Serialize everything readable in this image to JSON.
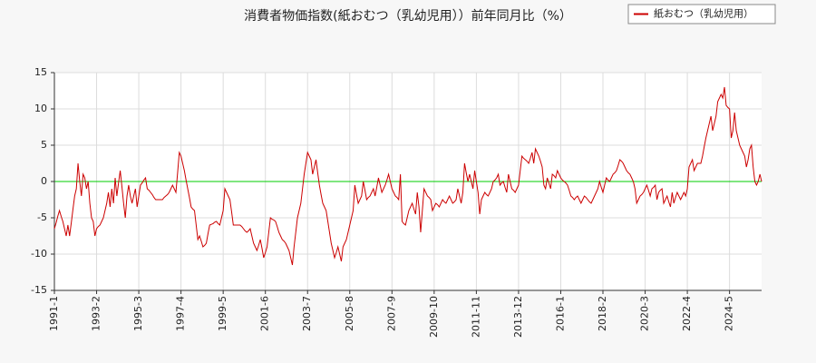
{
  "chart_data": {
    "type": "line",
    "title": "消費者物価指数(紙おむつ（乳幼児用））前年同月比（%）",
    "categories": [
      "1991-1",
      null,
      null,
      null,
      null,
      null,
      null,
      null,
      null,
      null,
      null,
      null,
      null,
      null,
      null,
      null,
      null,
      null,
      null,
      null,
      null,
      null,
      null,
      null,
      null,
      "1993-2",
      null,
      null,
      null,
      null,
      null,
      null,
      null,
      null,
      null,
      null,
      null,
      null,
      null,
      null,
      null,
      null,
      null,
      null,
      null,
      null,
      null,
      null,
      null,
      null,
      "1995-3",
      null,
      null,
      null,
      null,
      null,
      null,
      null,
      null,
      null,
      null,
      null,
      null,
      null,
      null,
      null,
      null,
      null,
      null,
      null,
      null,
      null,
      null,
      null,
      null,
      "1997-4",
      null,
      null,
      null,
      null,
      null,
      null,
      null,
      null,
      null,
      null,
      null,
      null,
      null,
      null,
      null,
      null,
      null,
      null,
      null,
      null,
      null,
      null,
      null,
      null,
      "1999-5",
      null,
      null,
      null,
      null,
      null,
      null,
      null,
      null,
      null,
      null,
      null,
      null,
      null,
      null,
      null,
      null,
      null,
      null,
      null,
      null,
      null,
      null,
      null,
      null,
      "2001-6",
      null,
      null,
      null,
      null,
      null,
      null,
      null,
      null,
      null,
      null,
      null,
      null,
      null,
      null,
      null,
      null,
      null,
      null,
      null,
      null,
      null,
      null,
      null,
      null,
      "2003-7",
      null,
      null,
      null,
      null,
      null,
      null,
      null,
      null,
      null,
      null,
      null,
      null,
      null,
      null,
      null,
      null,
      null,
      null,
      null,
      null,
      null,
      null,
      null,
      null,
      "2005-8",
      null,
      null,
      null,
      null,
      null,
      null,
      null,
      null,
      null,
      null,
      null,
      null,
      null,
      null,
      null,
      null,
      null,
      null,
      null,
      null,
      null,
      null,
      null,
      null,
      "2007-9",
      null,
      null,
      null,
      null,
      null,
      null,
      null,
      null,
      null,
      null,
      null,
      null,
      null,
      null,
      null,
      null,
      null,
      null,
      null,
      null,
      null,
      null,
      null,
      null,
      "2009-10",
      null,
      null,
      null,
      null,
      null,
      null,
      null,
      null,
      null,
      null,
      null,
      null,
      null,
      null,
      null,
      null,
      null,
      null,
      null,
      null,
      null,
      null,
      null,
      null,
      "2011-11",
      null,
      null,
      null,
      null,
      null,
      null,
      null,
      null,
      null,
      null,
      null,
      null,
      null,
      null,
      null,
      null,
      null,
      null,
      null,
      null,
      null,
      null,
      null,
      null,
      "2013-12",
      null,
      null,
      null,
      null,
      null,
      null,
      null,
      null,
      null,
      null,
      null,
      null,
      null,
      null,
      null,
      null,
      null,
      null,
      null,
      null,
      null,
      null,
      null,
      null,
      "2016-1",
      null,
      null,
      null,
      null,
      null,
      null,
      null,
      null,
      null,
      null,
      null,
      null,
      null,
      null,
      null,
      null,
      null,
      null,
      null,
      null,
      null,
      null,
      null,
      null,
      "2018-2",
      null,
      null,
      null,
      null,
      null,
      null,
      null,
      null,
      null,
      null,
      null,
      null,
      null,
      null,
      null,
      null,
      null,
      null,
      null,
      null,
      null,
      null,
      null,
      null,
      "2020-3",
      null,
      null,
      null,
      null,
      null,
      null,
      null,
      null,
      null,
      null,
      null,
      null,
      null,
      null,
      null,
      null,
      null,
      null,
      null,
      null,
      null,
      null,
      null,
      null,
      "2022-4",
      null,
      null,
      null,
      null,
      null,
      null,
      null,
      null,
      null,
      null,
      null,
      null,
      null,
      null,
      null,
      null,
      null,
      null,
      null,
      null,
      null,
      null,
      null,
      null,
      "2024-5",
      null,
      null,
      null,
      null,
      null,
      null,
      null,
      null,
      null,
      null,
      null,
      null,
      null,
      null,
      null,
      null,
      null,
      null,
      null
    ],
    "series": [
      {
        "name": "紙おむつ（乳幼児用）",
        "color": "#cc0000",
        "values": [
          -6.5,
          -5.7,
          -4.8,
          -4,
          -4.8,
          -5.5,
          -6.5,
          -7.5,
          -6,
          -7.5,
          -5.7,
          -3.8,
          -2,
          -1,
          2.5,
          0,
          -2,
          1,
          0.5,
          -1,
          0,
          -3,
          -5,
          -5.5,
          -7.5,
          -6.5,
          -6.2,
          -6,
          -5.5,
          -5,
          -4,
          -3,
          -1.5,
          -3.5,
          -1,
          -3,
          0.5,
          -2,
          -0.2,
          1.5,
          -0.7,
          -3,
          -5,
          -2,
          -0.5,
          -2,
          -3,
          -2,
          -1,
          -3.5,
          -2,
          -0.5,
          -0.2,
          0.2,
          0.5,
          -1,
          -1.2,
          -1.5,
          -1.8,
          -2.2,
          -2.5,
          -2.5,
          -2.5,
          -2.5,
          -2.5,
          -2.2,
          -2,
          -1.8,
          -1.5,
          -1,
          -0.5,
          -1,
          -1.5,
          1.2,
          4,
          3.5,
          2.5,
          1.5,
          0.2,
          -1,
          -2.2,
          -3.5,
          -3.8,
          -4,
          -6,
          -8,
          -7.5,
          -8.2,
          -9,
          -8.8,
          -8.5,
          -7.2,
          -6,
          -5.9,
          -5.8,
          -5.6,
          -5.5,
          -5.8,
          -6,
          -5,
          -4,
          -1,
          -1.5,
          -2,
          -2.5,
          -4.2,
          -6,
          -6,
          -6,
          -6,
          -6,
          -6.2,
          -6.5,
          -6.8,
          -7,
          -6.8,
          -6.5,
          -7.5,
          -8.5,
          -9,
          -9.5,
          -8.8,
          -8,
          -9.2,
          -10.5,
          -9.8,
          -9,
          -7,
          -5,
          -5.2,
          -5.3,
          -5.5,
          -6.2,
          -7,
          -7.5,
          -8,
          -8.2,
          -8.5,
          -9,
          -9.5,
          -10.5,
          -11.5,
          -9,
          -7,
          -5,
          -4,
          -3,
          -1,
          1,
          2.5,
          4,
          3.5,
          3,
          1,
          2,
          3,
          1.2,
          -0.5,
          -1.8,
          -3,
          -3.5,
          -4,
          -5.5,
          -7,
          -8.5,
          -9.5,
          -10.5,
          -9.8,
          -9,
          -10,
          -11,
          -9,
          -8.5,
          -8,
          -7,
          -6,
          -5,
          -4,
          -0.5,
          -1.8,
          -3,
          -2.5,
          -2,
          0,
          -1.2,
          -2.5,
          -2.2,
          -2,
          -1.5,
          -1,
          -2,
          -0.8,
          0.5,
          -0.5,
          -1.5,
          -1,
          -0.5,
          0.2,
          1,
          0,
          -1,
          -1.5,
          -2,
          -2.2,
          -2.5,
          1,
          -5.5,
          -5.8,
          -6,
          -5,
          -4,
          -3.5,
          -3,
          -3.8,
          -4.5,
          -1.5,
          -3.5,
          -7,
          -4,
          -1,
          -1.5,
          -2,
          -2.2,
          -2.5,
          -4,
          -3.5,
          -3,
          -3.2,
          -3.5,
          -3,
          -2.5,
          -2.8,
          -3,
          -2.5,
          -2,
          -2.5,
          -3,
          -2.8,
          -2.5,
          -1,
          -2,
          -3,
          -1.5,
          2.5,
          1.2,
          0,
          1,
          0,
          -1,
          1.5,
          0,
          -1.5,
          -4.5,
          -2.5,
          -2,
          -1.5,
          -1.8,
          -2,
          -1.5,
          -1,
          0,
          0.2,
          0.5,
          1,
          -0.5,
          -0.2,
          0,
          -0.8,
          -1.5,
          1,
          0,
          -1,
          -1.2,
          -1.5,
          -1,
          -0.5,
          1.5,
          3.5,
          3.2,
          3,
          2.8,
          2.5,
          3.2,
          4,
          2.5,
          4.5,
          4,
          3.5,
          2.8,
          2,
          -0.5,
          -1,
          0.5,
          -0.2,
          -1,
          1,
          0.8,
          0.5,
          1.5,
          1,
          0.5,
          0.2,
          0,
          -0.2,
          -0.5,
          -1.2,
          -2,
          -2.2,
          -2.5,
          -2.2,
          -2,
          -2.5,
          -3,
          -2.5,
          -2,
          -2.2,
          -2.5,
          -2.8,
          -3,
          -2.5,
          -2,
          -1.5,
          -1,
          0,
          -0.8,
          -1.5,
          -0.5,
          0.5,
          0.2,
          0,
          0.5,
          1,
          1.2,
          1.5,
          2.2,
          3,
          2.8,
          2.5,
          2,
          1.5,
          1.2,
          1,
          0.5,
          0,
          -1,
          -3,
          -2.5,
          -2,
          -1.8,
          -1.5,
          -1,
          -0.5,
          -1.2,
          -2,
          -1,
          -0.8,
          -0.5,
          -2.5,
          -1.5,
          -1.2,
          -1,
          -3,
          -2.5,
          -2,
          -2.8,
          -3.5,
          -1.5,
          -3,
          -2.2,
          -1.5,
          -2,
          -2.5,
          -2,
          -1.5,
          -2,
          -1,
          2,
          2.5,
          3,
          1.5,
          2,
          2.5,
          2.5,
          2.5,
          3.5,
          4.8,
          6,
          7,
          8,
          9,
          7,
          8,
          9,
          11,
          11.5,
          12,
          11.5,
          13,
          10.5,
          10.2,
          10,
          6,
          7,
          9.5,
          7,
          6,
          5,
          4.5,
          4,
          3.5,
          2,
          3,
          4.5,
          5,
          2,
          0,
          -0.5,
          0,
          1,
          0
        ]
      }
    ],
    "ylim": [
      -15,
      15
    ],
    "yticks": [
      15,
      10,
      5,
      0,
      -5,
      -10,
      -15
    ],
    "grid": true,
    "zero_line_color": "#00cc00",
    "legend": "top-right"
  }
}
